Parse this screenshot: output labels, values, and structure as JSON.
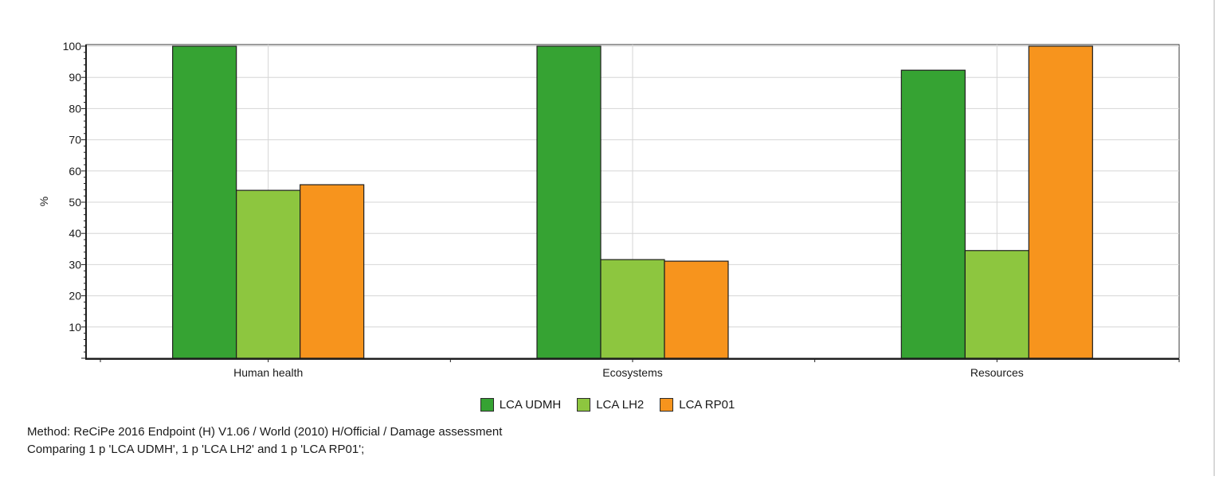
{
  "chart_data": {
    "type": "bar",
    "categories": [
      "Human health",
      "Ecosystems",
      "Resources"
    ],
    "series": [
      {
        "name": "LCA UDMH",
        "color": "#36a333",
        "values": [
          100,
          100,
          92.3
        ]
      },
      {
        "name": "LCA LH2",
        "color": "#8dc63f",
        "values": [
          53.8,
          31.6,
          34.5
        ]
      },
      {
        "name": "LCA RP01",
        "color": "#f7941d",
        "values": [
          55.6,
          31.1,
          100
        ]
      }
    ],
    "ylabel": "%",
    "xlabel": "",
    "ylim": [
      0,
      100
    ],
    "yticks": [
      10,
      20,
      30,
      40,
      50,
      60,
      70,
      80,
      90,
      100
    ],
    "grid": true,
    "legend_position": "bottom"
  },
  "caption": {
    "method": "Method: ReCiPe 2016 Endpoint (H) V1.06 / World (2010) H/Official / Damage assessment",
    "comparing": "Comparing 1 p 'LCA UDMH', 1 p 'LCA LH2' and 1 p 'LCA RP01';"
  }
}
